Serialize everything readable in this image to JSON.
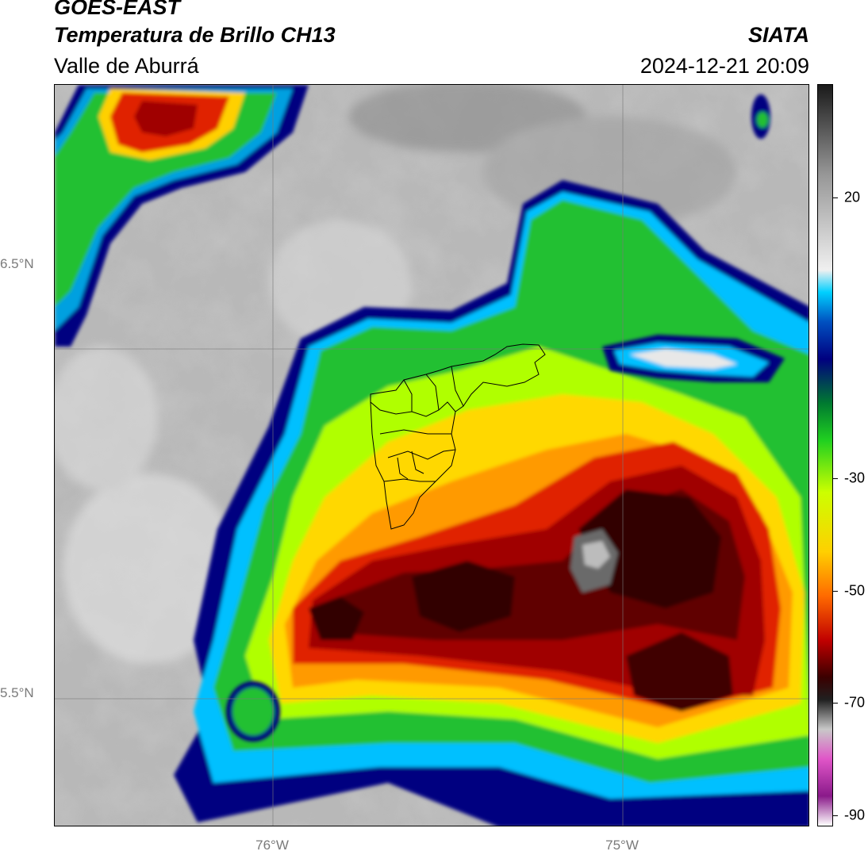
{
  "header": {
    "satellite": "GOES-EAST",
    "product": "Temperatura de Brillo CH13",
    "region": "Valle de Aburrá",
    "organization": "SIATA",
    "timestamp": "2024-12-21 20:09"
  },
  "axes": {
    "lat_labels": [
      "6.5°N",
      "5.5°N"
    ],
    "lon_labels": [
      "76°W",
      "75°W"
    ]
  },
  "colorbar": {
    "tick_labels": [
      "20",
      "-30",
      "-50",
      "-70",
      "-90"
    ],
    "colors": [
      "#ffffff",
      "#8a1a8a",
      "#e055c8",
      "#c8c8c8",
      "#202020",
      "#3a0000",
      "#c00000",
      "#ff6a00",
      "#ffd000",
      "#ccff00",
      "#20d020",
      "#007a30",
      "#000080",
      "#0050c0",
      "#00d0ff",
      "#f0f0f0",
      "#969696",
      "#1a1a1a"
    ]
  },
  "palette": {
    "cloud_free": [
      "#909090",
      "#a0a0a0",
      "#b4b4b4",
      "#c8c8c8",
      "#dcdcdc",
      "#ececec"
    ],
    "storm": [
      "#000080",
      "#00a0f0",
      "#20c030",
      "#b0ff00",
      "#ffe000",
      "#ff9a00",
      "#e02000",
      "#a00000",
      "#600000",
      "#300000"
    ]
  }
}
